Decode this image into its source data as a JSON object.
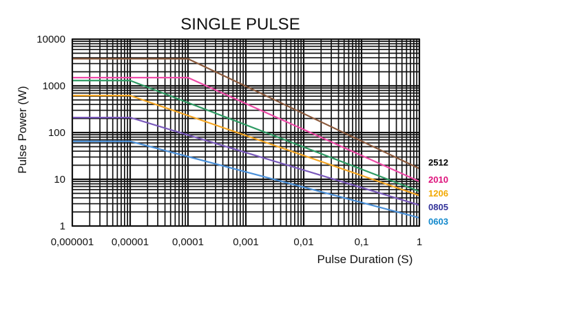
{
  "chart_data": {
    "type": "line",
    "title": "SINGLE PULSE",
    "xlabel": "Pulse Duration (S)",
    "ylabel": "Pulse Power (W)",
    "xscale": "log",
    "yscale": "log",
    "xlim": [
      1e-06,
      1
    ],
    "ylim": [
      1,
      10000
    ],
    "x_tick_labels": [
      "0,000001",
      "0,00001",
      "0,0001",
      "0,001",
      "0,01",
      "0,1",
      "1"
    ],
    "y_tick_labels": [
      "1",
      "10",
      "100",
      "1000",
      "10000"
    ],
    "grid": true,
    "legend_position": "right",
    "series": [
      {
        "name": "2512",
        "color": "#8b5a3c",
        "label_color": "#000000",
        "x": [
          1e-06,
          0.0001,
          1
        ],
        "y": [
          3800,
          3800,
          17
        ]
      },
      {
        "name": "2010",
        "color": "#ee4aa8",
        "label_color": "#dd0f7a",
        "x": [
          1e-06,
          0.0001,
          1
        ],
        "y": [
          1500,
          1500,
          9
        ]
      },
      {
        "name": "1206",
        "color": "#f5a623",
        "label_color": "#f2a900",
        "x": [
          1e-06,
          1e-05,
          1
        ],
        "y": [
          620,
          620,
          4.5
        ]
      },
      {
        "name": "0805",
        "color": "#7a5abb",
        "label_color": "#333399",
        "x": [
          1e-06,
          1e-05,
          1
        ],
        "y": [
          210,
          210,
          2.8
        ]
      },
      {
        "name": "0603",
        "color": "#4a90d9",
        "label_color": "#1188cc",
        "x": [
          1e-06,
          1e-05,
          1
        ],
        "y": [
          65,
          65,
          1.5
        ]
      },
      {
        "color": "#2e9a63",
        "x": [
          1e-06,
          1e-05,
          1
        ],
        "y": [
          1300,
          1300,
          5.5
        ]
      }
    ]
  }
}
